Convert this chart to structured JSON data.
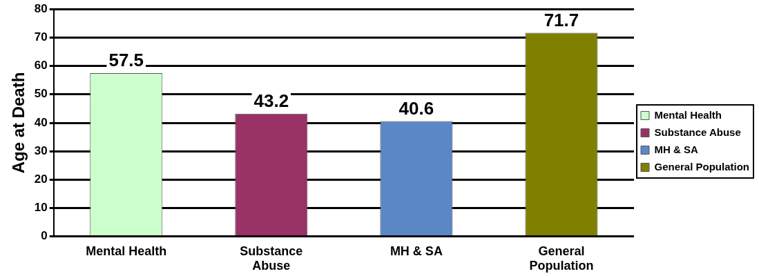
{
  "chart_data": {
    "type": "bar",
    "ylabel": "Age at Death",
    "categories": [
      "Mental Health",
      "Substance Abuse",
      "MH & SA",
      "General Population"
    ],
    "series": [
      {
        "name": "Mental Health",
        "color": "#ccffcc",
        "values": [
          57.5,
          null,
          null,
          null
        ]
      },
      {
        "name": "Substance Abuse",
        "color": "#993366",
        "values": [
          null,
          43.2,
          null,
          null
        ]
      },
      {
        "name": "MH & SA",
        "color": "#5b87c6",
        "values": [
          null,
          null,
          40.6,
          null
        ]
      },
      {
        "name": "General Population",
        "color": "#808000",
        "values": [
          null,
          null,
          null,
          71.7
        ]
      }
    ],
    "ylim": [
      0,
      80
    ],
    "yticks": [
      0,
      10,
      20,
      30,
      40,
      50,
      60,
      70,
      80
    ],
    "grid": "y",
    "legend": "right",
    "data_labels": true
  }
}
